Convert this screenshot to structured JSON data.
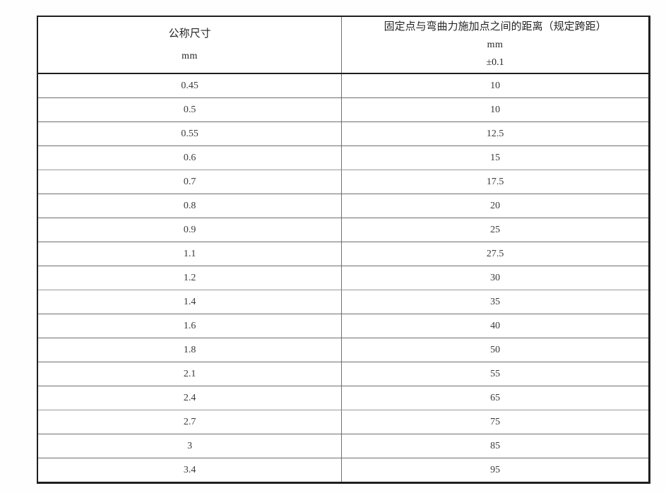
{
  "table": {
    "header": {
      "col1": {
        "title": "公称尺寸",
        "unit": "mm"
      },
      "col2": {
        "title": "固定点与弯曲力施加点之间的距离（规定跨距）",
        "unit": "mm",
        "tolerance": "±0.1"
      }
    },
    "rows": [
      {
        "nominal_size": "0.45",
        "span_distance": "10"
      },
      {
        "nominal_size": "0.5",
        "span_distance": "10"
      },
      {
        "nominal_size": "0.55",
        "span_distance": "12.5"
      },
      {
        "nominal_size": "0.6",
        "span_distance": "15"
      },
      {
        "nominal_size": "0.7",
        "span_distance": "17.5"
      },
      {
        "nominal_size": "0.8",
        "span_distance": "20"
      },
      {
        "nominal_size": "0.9",
        "span_distance": "25"
      },
      {
        "nominal_size": "1.1",
        "span_distance": "27.5"
      },
      {
        "nominal_size": "1.2",
        "span_distance": "30"
      },
      {
        "nominal_size": "1.4",
        "span_distance": "35"
      },
      {
        "nominal_size": "1.6",
        "span_distance": "40"
      },
      {
        "nominal_size": "1.8",
        "span_distance": "50"
      },
      {
        "nominal_size": "2.1",
        "span_distance": "55"
      },
      {
        "nominal_size": "2.4",
        "span_distance": "65"
      },
      {
        "nominal_size": "2.7",
        "span_distance": "75"
      },
      {
        "nominal_size": "3",
        "span_distance": "85"
      },
      {
        "nominal_size": "3.4",
        "span_distance": "95"
      }
    ]
  },
  "chart_data": {
    "type": "table",
    "columns": [
      "公称尺寸 mm",
      "固定点与弯曲力施加点之间的距离（规定跨距） mm ±0.1"
    ],
    "nominal_sizes": [
      0.45,
      0.5,
      0.55,
      0.6,
      0.7,
      0.8,
      0.9,
      1.1,
      1.2,
      1.4,
      1.6,
      1.8,
      2.1,
      2.4,
      2.7,
      3,
      3.4
    ],
    "span_distances": [
      10,
      10,
      12.5,
      15,
      17.5,
      20,
      25,
      27.5,
      30,
      35,
      40,
      50,
      55,
      65,
      75,
      85,
      95
    ]
  }
}
